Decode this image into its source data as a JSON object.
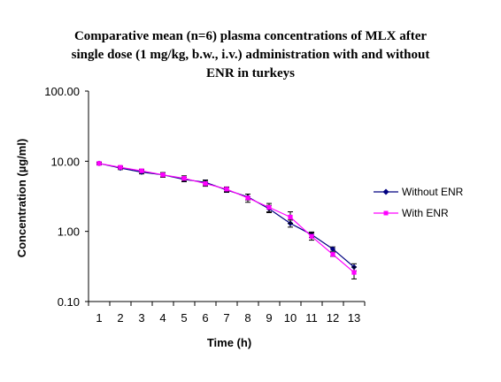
{
  "chart_data": {
    "type": "line",
    "title_lines": [
      "Comparative mean (n=6) plasma concentrations of MLX after",
      "single dose (1 mg/kg, b.w., i.v.) administration with and without",
      "ENR in turkeys"
    ],
    "xlabel": "Time (h)",
    "ylabel": "Concentration (µg/ml)",
    "x": [
      1,
      2,
      3,
      4,
      5,
      6,
      7,
      8,
      9,
      10,
      11,
      12,
      13
    ],
    "x_tick_labels": [
      "1",
      "2",
      "3",
      "4",
      "5",
      "6",
      "7",
      "8",
      "9",
      "10",
      "11",
      "12",
      "13"
    ],
    "y_scale": "log",
    "ylim": [
      0.1,
      100
    ],
    "y_tick_values": [
      0.1,
      1,
      10,
      100
    ],
    "y_tick_labels": [
      "0.10",
      "1.00",
      "10.00",
      "100.00"
    ],
    "grid": false,
    "legend_position": "right",
    "series": [
      {
        "name": "Without ENR",
        "color": "#000080",
        "marker": "diamond",
        "values": [
          9.3,
          8.0,
          7.0,
          6.4,
          5.5,
          5.0,
          3.9,
          3.1,
          2.1,
          1.3,
          0.9,
          0.56,
          0.31
        ],
        "error": [
          0.4,
          0.4,
          0.4,
          0.4,
          0.4,
          0.4,
          0.3,
          0.3,
          0.25,
          0.15,
          0.08,
          0.04,
          0.035
        ]
      },
      {
        "name": "With ENR",
        "color": "#ff00ff",
        "marker": "square",
        "values": [
          9.3,
          8.2,
          7.3,
          6.4,
          5.7,
          4.8,
          4.0,
          3.0,
          2.2,
          1.6,
          0.85,
          0.47,
          0.26
        ],
        "error": [
          0.3,
          0.3,
          0.4,
          0.5,
          0.5,
          0.4,
          0.3,
          0.4,
          0.3,
          0.3,
          0.1,
          0.03,
          0.05
        ]
      }
    ]
  }
}
